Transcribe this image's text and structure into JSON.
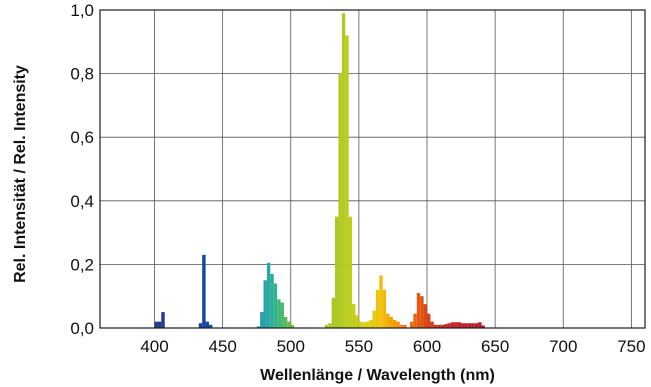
{
  "chart_data": {
    "type": "bar",
    "xlabel": "Wellenlänge / Wavelength (nm)",
    "ylabel": "Rel. Intensität / Rel. Intensity",
    "xlim": [
      360,
      760
    ],
    "ylim": [
      0,
      1.0
    ],
    "xticks": [
      400,
      450,
      500,
      550,
      600,
      650,
      700,
      750
    ],
    "xtick_labels": [
      "400",
      "450",
      "500",
      "550",
      "600",
      "650",
      "700",
      "750"
    ],
    "yticks": [
      0.0,
      0.2,
      0.4,
      0.6,
      0.8,
      1.0
    ],
    "ytick_labels": [
      "0,0",
      "0,2",
      "0,4",
      "0,6",
      "0,8",
      "1,0"
    ],
    "grid": true,
    "bin_width_nm": 2.5,
    "values": [
      {
        "x": 400,
        "y": 0.02,
        "color": "#1f3a93"
      },
      {
        "x": 402.5,
        "y": 0.02,
        "color": "#1f3a93"
      },
      {
        "x": 405,
        "y": 0.05,
        "color": "#1f3a93"
      },
      {
        "x": 432.5,
        "y": 0.015,
        "color": "#1446a0"
      },
      {
        "x": 435,
        "y": 0.23,
        "color": "#1446a0"
      },
      {
        "x": 437.5,
        "y": 0.02,
        "color": "#1446a0"
      },
      {
        "x": 440,
        "y": 0.01,
        "color": "#1446a0"
      },
      {
        "x": 475,
        "y": 0.005,
        "color": "#2a8fb0"
      },
      {
        "x": 477.5,
        "y": 0.05,
        "color": "#2a9fae"
      },
      {
        "x": 480,
        "y": 0.15,
        "color": "#27a3a8"
      },
      {
        "x": 482.5,
        "y": 0.205,
        "color": "#26a9a2"
      },
      {
        "x": 485,
        "y": 0.17,
        "color": "#2aae98"
      },
      {
        "x": 487.5,
        "y": 0.14,
        "color": "#33b38c"
      },
      {
        "x": 490,
        "y": 0.09,
        "color": "#3fb67d"
      },
      {
        "x": 492.5,
        "y": 0.08,
        "color": "#4cb86c"
      },
      {
        "x": 495,
        "y": 0.035,
        "color": "#5cbb5a"
      },
      {
        "x": 497.5,
        "y": 0.02,
        "color": "#6cbd4a"
      },
      {
        "x": 500,
        "y": 0.01,
        "color": "#7bbf3c"
      },
      {
        "x": 525,
        "y": 0.01,
        "color": "#a3c62a"
      },
      {
        "x": 527.5,
        "y": 0.015,
        "color": "#a6c728"
      },
      {
        "x": 530,
        "y": 0.095,
        "color": "#a9c826"
      },
      {
        "x": 532.5,
        "y": 0.35,
        "color": "#acc824"
      },
      {
        "x": 535,
        "y": 0.8,
        "color": "#b0c922"
      },
      {
        "x": 537.5,
        "y": 0.99,
        "color": "#b4ca20"
      },
      {
        "x": 540,
        "y": 0.92,
        "color": "#b9cb1e"
      },
      {
        "x": 542.5,
        "y": 0.35,
        "color": "#becc1c"
      },
      {
        "x": 545,
        "y": 0.075,
        "color": "#c4cd1a"
      },
      {
        "x": 547.5,
        "y": 0.04,
        "color": "#cacd18"
      },
      {
        "x": 550,
        "y": 0.02,
        "color": "#d0ce16"
      },
      {
        "x": 552.5,
        "y": 0.018,
        "color": "#d6ce14"
      },
      {
        "x": 555,
        "y": 0.02,
        "color": "#dccd12"
      },
      {
        "x": 557.5,
        "y": 0.025,
        "color": "#e2cc10"
      },
      {
        "x": 560,
        "y": 0.055,
        "color": "#e7c90e"
      },
      {
        "x": 562.5,
        "y": 0.12,
        "color": "#ecc40c"
      },
      {
        "x": 565,
        "y": 0.165,
        "color": "#f0be0b"
      },
      {
        "x": 567.5,
        "y": 0.12,
        "color": "#f3b70a"
      },
      {
        "x": 570,
        "y": 0.045,
        "color": "#f5ae09"
      },
      {
        "x": 572.5,
        "y": 0.035,
        "color": "#f6a309"
      },
      {
        "x": 575,
        "y": 0.025,
        "color": "#f69a09"
      },
      {
        "x": 577.5,
        "y": 0.02,
        "color": "#f48f0a"
      },
      {
        "x": 580,
        "y": 0.01,
        "color": "#f2850b"
      },
      {
        "x": 582.5,
        "y": 0.01,
        "color": "#ef7a0c"
      },
      {
        "x": 587.5,
        "y": 0.02,
        "color": "#ec6e0e"
      },
      {
        "x": 590,
        "y": 0.045,
        "color": "#e86410"
      },
      {
        "x": 592.5,
        "y": 0.11,
        "color": "#e45a12"
      },
      {
        "x": 595,
        "y": 0.1,
        "color": "#e05114"
      },
      {
        "x": 597.5,
        "y": 0.075,
        "color": "#dc4916"
      },
      {
        "x": 600,
        "y": 0.045,
        "color": "#d84118"
      },
      {
        "x": 602.5,
        "y": 0.02,
        "color": "#d53a1a"
      },
      {
        "x": 605,
        "y": 0.01,
        "color": "#d2341c"
      },
      {
        "x": 607.5,
        "y": 0.01,
        "color": "#cf2f1e"
      },
      {
        "x": 610,
        "y": 0.01,
        "color": "#cc2b20"
      },
      {
        "x": 612.5,
        "y": 0.012,
        "color": "#ca2822"
      },
      {
        "x": 615,
        "y": 0.015,
        "color": "#c82523"
      },
      {
        "x": 617.5,
        "y": 0.018,
        "color": "#c62324"
      },
      {
        "x": 620,
        "y": 0.018,
        "color": "#c42125"
      },
      {
        "x": 622.5,
        "y": 0.018,
        "color": "#c22026"
      },
      {
        "x": 625,
        "y": 0.015,
        "color": "#c01f27"
      },
      {
        "x": 627.5,
        "y": 0.015,
        "color": "#be1e28"
      },
      {
        "x": 630,
        "y": 0.015,
        "color": "#bc1d29"
      },
      {
        "x": 632.5,
        "y": 0.015,
        "color": "#ba1c2a"
      },
      {
        "x": 635,
        "y": 0.015,
        "color": "#b81b2b"
      },
      {
        "x": 637.5,
        "y": 0.018,
        "color": "#b61a2c"
      },
      {
        "x": 640,
        "y": 0.008,
        "color": "#b4192d"
      }
    ]
  }
}
